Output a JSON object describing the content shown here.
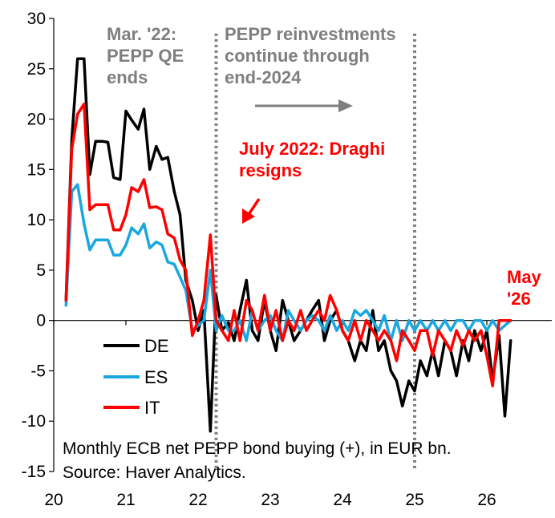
{
  "chart_data": {
    "type": "line",
    "x_unit": "year (20 = 2020)",
    "xlim": [
      20,
      26.9
    ],
    "ylim": [
      -15,
      30
    ],
    "x_ticks": [
      20,
      21,
      22,
      23,
      24,
      25,
      26
    ],
    "y_ticks": [
      -15,
      -10,
      -5,
      0,
      5,
      10,
      15,
      20,
      25,
      30
    ],
    "grid": false,
    "legend_position": "lower-left",
    "colors": {
      "DE": "#000000",
      "ES": "#1aa7e0",
      "IT": "#ff0000",
      "annotation_gray": "#7f7f7f",
      "annotation_red": "#ff0000"
    },
    "series": [
      {
        "name": "DE",
        "x": [
          20.17,
          20.25,
          20.33,
          20.42,
          20.5,
          20.58,
          20.67,
          20.75,
          20.83,
          20.92,
          21.0,
          21.08,
          21.17,
          21.25,
          21.33,
          21.42,
          21.5,
          21.58,
          21.67,
          21.75,
          21.83,
          21.92,
          22.0,
          22.08,
          22.17,
          22.25,
          22.33,
          22.42,
          22.5,
          22.58,
          22.67,
          22.75,
          22.83,
          22.92,
          23.0,
          23.08,
          23.17,
          23.25,
          23.33,
          23.42,
          23.5,
          23.58,
          23.67,
          23.75,
          23.83,
          23.92,
          24.0,
          24.08,
          24.17,
          24.25,
          24.33,
          24.42,
          24.5,
          24.58,
          24.67,
          24.75,
          24.83,
          24.92,
          25.0,
          25.08,
          25.17,
          25.25,
          25.33,
          25.42,
          25.5,
          25.58,
          25.67,
          25.75,
          25.83,
          25.92,
          26.0,
          26.08,
          26.17,
          26.25,
          26.33
        ],
        "values": [
          2,
          18,
          26,
          26,
          14.5,
          17.8,
          17.8,
          17.7,
          14.2,
          14,
          20.8,
          19.9,
          19,
          21,
          15,
          17.3,
          16,
          16.2,
          12.8,
          10.5,
          4,
          2,
          -1,
          1,
          -11,
          2.5,
          -1,
          -0.2,
          -2,
          1,
          4,
          -1,
          -2,
          2,
          -1,
          -3,
          2,
          0,
          -2,
          -1,
          0,
          1,
          2,
          -2,
          0,
          1,
          -1,
          -2,
          -4,
          -2,
          -3,
          1,
          -3,
          -2,
          -5,
          -6,
          -8.5,
          -6,
          -7,
          -4,
          -5.5,
          -3,
          -5.5,
          -2,
          -3,
          -5.5,
          -2,
          -4,
          -1,
          -3,
          -1,
          -6,
          -1.5,
          -9.5,
          -2
        ]
      },
      {
        "name": "ES",
        "x": [
          20.17,
          20.25,
          20.33,
          20.42,
          20.5,
          20.58,
          20.67,
          20.75,
          20.83,
          20.92,
          21.0,
          21.08,
          21.17,
          21.25,
          21.33,
          21.42,
          21.5,
          21.58,
          21.67,
          21.75,
          21.83,
          21.92,
          22.0,
          22.08,
          22.17,
          22.25,
          22.33,
          22.42,
          22.5,
          22.58,
          22.67,
          22.75,
          22.83,
          22.92,
          23.0,
          23.08,
          23.17,
          23.25,
          23.33,
          23.42,
          23.5,
          23.58,
          23.67,
          23.75,
          23.83,
          23.92,
          24.0,
          24.08,
          24.17,
          24.25,
          24.33,
          24.42,
          24.5,
          24.58,
          24.67,
          24.75,
          24.83,
          24.92,
          25.0,
          25.08,
          25.17,
          25.25,
          25.33,
          25.42,
          25.5,
          25.58,
          25.67,
          25.75,
          25.83,
          25.92,
          26.0,
          26.08,
          26.17,
          26.25,
          26.33
        ],
        "values": [
          1.5,
          12.8,
          13.5,
          9.6,
          7,
          8,
          8,
          8,
          6.5,
          6.5,
          7.5,
          9.2,
          8.6,
          9.6,
          7.2,
          7.8,
          7.5,
          5.8,
          5.6,
          4.3,
          3,
          -1,
          -0.5,
          0,
          5,
          -1,
          0.5,
          -1,
          -1,
          0,
          -2,
          1,
          -1,
          0,
          0.5,
          -1,
          -2,
          1,
          0,
          -1,
          0,
          0.5,
          0,
          -1,
          0.5,
          -1,
          0,
          -1,
          1,
          0.5,
          1,
          0,
          -1,
          0.5,
          -2,
          0,
          -2,
          0,
          -1,
          0,
          -1,
          0,
          -1,
          0,
          -1,
          0,
          0,
          -1,
          0,
          0,
          -1,
          0,
          -1,
          -0.5,
          0
        ]
      },
      {
        "name": "IT",
        "x": [
          20.17,
          20.25,
          20.33,
          20.42,
          20.5,
          20.58,
          20.67,
          20.75,
          20.83,
          20.92,
          21.0,
          21.08,
          21.17,
          21.25,
          21.33,
          21.42,
          21.5,
          21.58,
          21.67,
          21.75,
          21.83,
          21.92,
          22.0,
          22.08,
          22.17,
          22.25,
          22.33,
          22.42,
          22.5,
          22.58,
          22.67,
          22.75,
          22.83,
          22.92,
          23.0,
          23.08,
          23.17,
          23.25,
          23.33,
          23.42,
          23.5,
          23.58,
          23.67,
          23.75,
          23.83,
          23.92,
          24.0,
          24.08,
          24.17,
          24.25,
          24.33,
          24.42,
          24.5,
          24.58,
          24.67,
          24.75,
          24.83,
          24.92,
          25.0,
          25.08,
          25.17,
          25.25,
          25.33,
          25.42,
          25.5,
          25.58,
          25.67,
          25.75,
          25.83,
          25.92,
          26.0,
          26.08,
          26.17,
          26.25,
          26.33
        ],
        "values": [
          2,
          17,
          20.5,
          21.5,
          11,
          11.5,
          11.5,
          11.5,
          9,
          9,
          10.5,
          13.2,
          12.8,
          14,
          11.2,
          11.3,
          11,
          8.6,
          8.2,
          6,
          5,
          -1.5,
          0,
          2,
          8.5,
          0,
          -1,
          -2,
          1,
          -2,
          2,
          1,
          -1,
          2.5,
          -1,
          1,
          -2,
          0,
          -1,
          1,
          -1,
          0,
          1,
          0,
          2.5,
          1,
          -1,
          -2,
          0,
          -2,
          0,
          -1,
          -2,
          -1,
          -2,
          -4,
          -1,
          -2,
          -3,
          -1,
          -1,
          -3.5,
          -1,
          -2,
          -3,
          -1,
          -2.5,
          -1,
          -2,
          -1,
          -3.5,
          -6.5,
          0,
          0,
          0
        ]
      }
    ],
    "legend": [
      "DE",
      "ES",
      "IT"
    ],
    "annotations": [
      {
        "lines": [
          "Mar. '22:",
          "PEPP QE",
          "ends"
        ],
        "color": "#7f7f7f"
      },
      {
        "lines": [
          "PEPP reinvestments",
          "continue through",
          "end-2024"
        ],
        "color": "#7f7f7f"
      },
      {
        "lines": [
          "July 2022: Draghi",
          "resigns"
        ],
        "color": "#ff0000"
      },
      {
        "lines": [
          "May",
          "'26"
        ],
        "color": "#ff0000"
      }
    ],
    "vertical_markers_x": [
      22.25,
      25.0
    ],
    "note_lines": [
      "Monthly ECB net PEPP bond buying (+), in EUR bn.",
      "Source: Haver Analytics."
    ]
  }
}
